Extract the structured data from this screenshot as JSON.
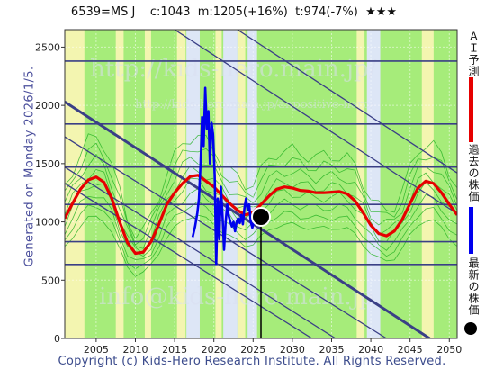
{
  "header": {
    "code": "6539=MS J",
    "current": "c:1043",
    "median": "m:1205(+16%)",
    "target": "t:974(-7%)",
    "stars": "★★★"
  },
  "side_label": "Generated on Monday 2026/1/5.",
  "footer": "Copyright (c) Kids-Hero Research Institute. All Rights Reserved.",
  "legend": {
    "ai_forecast": "ＡＩ予測",
    "past_price": "過去の株価",
    "latest_price": "最新の株価"
  },
  "watermarks": {
    "top": "http://kids-hero.main.jp/",
    "mid": "http://kids-hero.main.jp/anpositive-hero/",
    "bottom": "info@kids-hero.main.jp"
  },
  "colors": {
    "ai_forecast": "#e60000",
    "past_price": "#0000ee",
    "latest_price": "#000000",
    "bg_green": "#a6ec7a",
    "bg_yellow": "#f3f5b0",
    "bg_blue": "#dde6f6",
    "channel_lines": "#3a3f86"
  },
  "chart_data": {
    "type": "line",
    "xlim": [
      2001,
      2051
    ],
    "ylim": [
      0,
      2650
    ],
    "x_ticks": [
      2005,
      2010,
      2015,
      2020,
      2025,
      2030,
      2035,
      2040,
      2045,
      2050
    ],
    "y_ticks": [
      0,
      500,
      1000,
      1500,
      2000,
      2500
    ],
    "grid": true,
    "latest_point": {
      "x": 2026.0,
      "y": 1043
    },
    "horizontal_levels": [
      2380,
      1840,
      1470,
      1150,
      830,
      635
    ],
    "diagonal_lines": [
      {
        "x1": 2001,
        "y1": 2030,
        "x2": 2047.5,
        "y2": 0
      },
      {
        "x1": 2001,
        "y1": 1730,
        "x2": 2042,
        "y2": 0
      },
      {
        "x1": 2001,
        "y1": 1470,
        "x2": 2035.5,
        "y2": 0
      },
      {
        "x1": 2001,
        "y1": 1330,
        "x2": 2032.5,
        "y2": 0
      },
      {
        "x1": 2015,
        "y1": 2650,
        "x2": 2051,
        "y2": 1070
      },
      {
        "x1": 2023,
        "y1": 2650,
        "x2": 2051,
        "y2": 1420
      }
    ],
    "bold_diagonal": {
      "x1": 2001,
      "y1": 2030,
      "x2": 2047.5,
      "y2": 0
    },
    "series": [
      {
        "name": "ＡＩ予測",
        "color": "#e60000",
        "x": [
          2001,
          2002,
          2003,
          2004,
          2005,
          2006,
          2007,
          2008,
          2009,
          2010,
          2011,
          2012,
          2013,
          2014,
          2015,
          2016,
          2017,
          2018,
          2019,
          2020,
          2021,
          2022,
          2023,
          2024,
          2025,
          2026,
          2027,
          2028,
          2029,
          2030,
          2031,
          2032,
          2033,
          2034,
          2035,
          2036,
          2037,
          2038,
          2039,
          2040,
          2041,
          2042,
          2043,
          2044,
          2045,
          2046,
          2047,
          2048,
          2049,
          2050,
          2051
        ],
        "values": [
          1030,
          1160,
          1280,
          1360,
          1385,
          1340,
          1200,
          1000,
          820,
          730,
          740,
          830,
          980,
          1150,
          1250,
          1330,
          1390,
          1400,
          1350,
          1300,
          1230,
          1160,
          1100,
          1060,
          1080,
          1150,
          1220,
          1280,
          1300,
          1290,
          1270,
          1265,
          1250,
          1250,
          1255,
          1260,
          1240,
          1180,
          1080,
          970,
          900,
          880,
          920,
          1020,
          1160,
          1290,
          1350,
          1330,
          1250,
          1150,
          1060
        ]
      },
      {
        "name": "過去の株価",
        "color": "#0000ee",
        "x": [
          2017.3,
          2017.6,
          2017.9,
          2018.1,
          2018.3,
          2018.5,
          2018.7,
          2018.9,
          2019.1,
          2019.3,
          2019.5,
          2019.7,
          2019.9,
          2020.1,
          2020.3,
          2020.5,
          2020.7,
          2020.9,
          2021.1,
          2021.3,
          2021.5,
          2021.7,
          2021.9,
          2022.1,
          2022.3,
          2022.5,
          2022.7,
          2022.9,
          2023.1,
          2023.3,
          2023.5,
          2023.7,
          2023.9,
          2024.1,
          2024.3,
          2024.5,
          2024.7,
          2024.9,
          2025.1,
          2025.3,
          2025.5,
          2025.7,
          2026.0
        ],
        "values": [
          870,
          960,
          1080,
          1200,
          1500,
          1900,
          1650,
          2150,
          1800,
          1950,
          1500,
          1850,
          1750,
          1400,
          640,
          1200,
          850,
          1300,
          1050,
          760,
          1000,
          1150,
          1050,
          1000,
          960,
          1000,
          920,
          1000,
          1030,
          990,
          1060,
          980,
          1120,
          1200,
          1100,
          1150,
          1000,
          950,
          1000,
          1020,
          1040,
          1060,
          1043
        ]
      }
    ]
  }
}
